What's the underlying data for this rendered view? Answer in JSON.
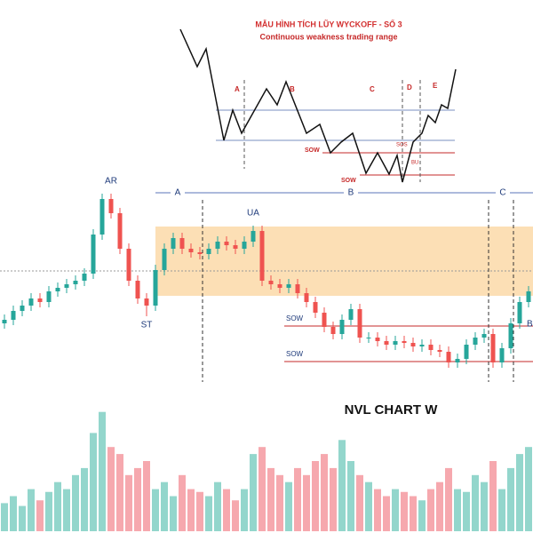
{
  "chart_data": {
    "type": "candlestick",
    "title": "NVL CHART W",
    "open": [
      38,
      40,
      45,
      48,
      52,
      50,
      56,
      58,
      60,
      62,
      66,
      88,
      108,
      100,
      80,
      62,
      52,
      48,
      68,
      80,
      86,
      80,
      78,
      77,
      80,
      84,
      82,
      80,
      84,
      90,
      62,
      60,
      58,
      60,
      55,
      50,
      44,
      36,
      32,
      40,
      46,
      30,
      30,
      28,
      26,
      28,
      27,
      25,
      26,
      23,
      22,
      16,
      18,
      26,
      30,
      32,
      16,
      24,
      38,
      50
    ],
    "high": [
      43,
      48,
      51,
      55,
      55,
      59,
      61,
      63,
      65,
      69,
      91,
      111,
      111,
      103,
      83,
      65,
      55,
      71,
      83,
      89,
      89,
      83,
      81,
      83,
      87,
      87,
      85,
      87,
      93,
      93,
      65,
      63,
      63,
      63,
      58,
      53,
      47,
      39,
      43,
      49,
      49,
      33,
      33,
      31,
      31,
      31,
      30,
      29,
      29,
      26,
      25,
      21,
      29,
      33,
      35,
      35,
      27,
      41,
      53,
      59
    ],
    "low": [
      35,
      37,
      42,
      45,
      47,
      47,
      53,
      55,
      57,
      59,
      63,
      85,
      97,
      77,
      59,
      49,
      42,
      45,
      65,
      77,
      77,
      75,
      74,
      74,
      77,
      79,
      77,
      77,
      81,
      59,
      57,
      55,
      55,
      52,
      47,
      41,
      33,
      29,
      29,
      37,
      27,
      27,
      25,
      23,
      23,
      24,
      22,
      22,
      20,
      19,
      13,
      13,
      15,
      23,
      27,
      13,
      13,
      21,
      35,
      47
    ],
    "close": [
      40,
      45,
      48,
      52,
      50,
      56,
      58,
      60,
      62,
      66,
      88,
      108,
      100,
      80,
      62,
      52,
      48,
      68,
      80,
      86,
      80,
      78,
      77,
      80,
      84,
      82,
      80,
      84,
      90,
      62,
      60,
      58,
      60,
      55,
      50,
      44,
      36,
      32,
      40,
      46,
      30,
      30,
      28,
      26,
      28,
      27,
      25,
      26,
      23,
      22,
      16,
      18,
      26,
      30,
      32,
      16,
      24,
      38,
      50,
      56
    ],
    "volume": [
      20,
      25,
      18,
      30,
      22,
      28,
      35,
      30,
      40,
      45,
      70,
      85,
      60,
      55,
      40,
      45,
      50,
      30,
      35,
      25,
      40,
      30,
      28,
      25,
      35,
      30,
      22,
      30,
      55,
      60,
      45,
      40,
      35,
      45,
      40,
      50,
      55,
      45,
      65,
      50,
      40,
      35,
      30,
      25,
      30,
      28,
      25,
      22,
      30,
      35,
      45,
      30,
      28,
      40,
      35,
      50,
      30,
      45,
      55,
      60
    ],
    "up_color": "#26a69a",
    "down_color": "#ef5350",
    "up_volume_color": "#93d6cc",
    "down_volume_color": "#f6a8ae",
    "ylim": [
      0,
      130
    ],
    "vlim": [
      0,
      100
    ],
    "zone": [
      53.5,
      92.5
    ],
    "zone_color": "#fbd9a8",
    "midline": 67.5,
    "levels": [
      {
        "label": "SOW",
        "value": 36.5
      },
      {
        "label": "SOW",
        "value": 16.5
      }
    ],
    "annotations": [
      {
        "label": "AR",
        "index": 12
      },
      {
        "label": "ST",
        "index": 16
      },
      {
        "label": "UA",
        "index": 28
      }
    ],
    "phases": [
      "A",
      "B",
      "C"
    ],
    "edge_label": "B"
  },
  "inset": {
    "title": "MẪU HÌNH TÍCH LŨY WYCKOFF - SỐ 3",
    "subtitle": "Continuous weakness trading range",
    "phases": [
      "A",
      "B",
      "C",
      "D",
      "E"
    ],
    "sow1": "SOW",
    "sow2": "SOW",
    "sos": "SOS",
    "bu": "BU"
  }
}
